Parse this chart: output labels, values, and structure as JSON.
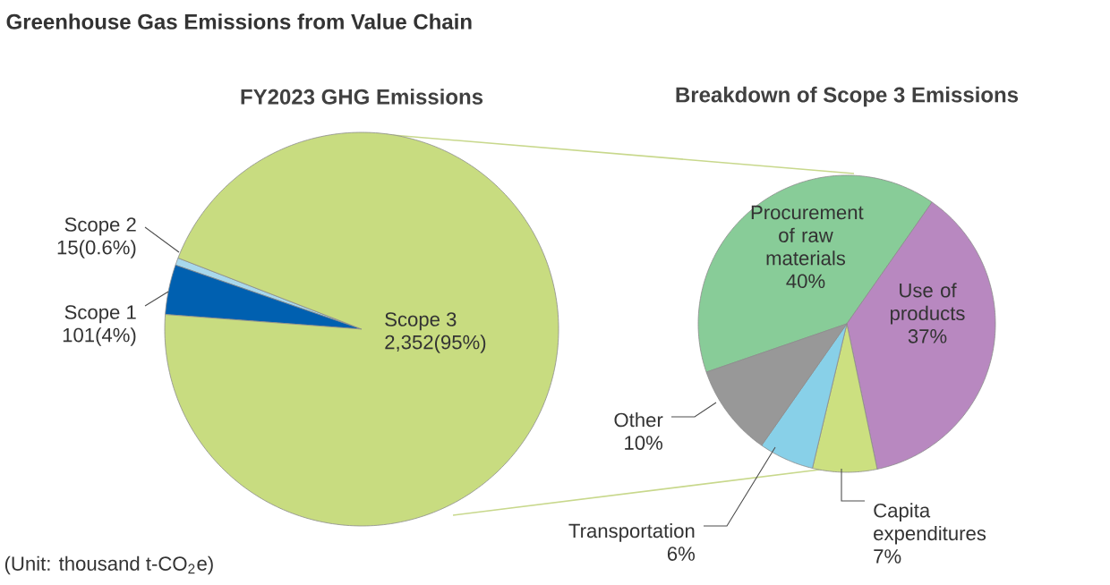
{
  "chart_data": [
    {
      "type": "pie",
      "title": "FY2023 GHG Emissions",
      "categories": [
        "Scope 2",
        "Scope 1",
        "Scope 3"
      ],
      "values": [
        15,
        101,
        2352
      ],
      "colors": [
        "#a8d8ec",
        "#0060b0",
        "#c8dc80"
      ],
      "value_labels": [
        "15(0.6%)",
        "101(4%)",
        "2,352(95%)"
      ],
      "annotations": [
        "Greenhouse Gas Emissions from Value Chain",
        "(Unit: thousand t-CO$_{2}$e)"
      ]
    },
    {
      "type": "pie",
      "title": "Breakdown of Scope 3 Emissions",
      "categories": [
        "Procurement of raw materials",
        "Use of products",
        "Capita expenditures",
        "Transportation",
        "Other"
      ],
      "values": [
        40,
        37,
        7,
        6,
        10
      ],
      "colors": [
        "#88cc98",
        "#b888c0",
        "#cce080",
        "#88d0e8",
        "#989898"
      ],
      "value_labels": [
        "40%",
        "37%",
        "7%",
        "6%",
        "10%"
      ]
    }
  ]
}
